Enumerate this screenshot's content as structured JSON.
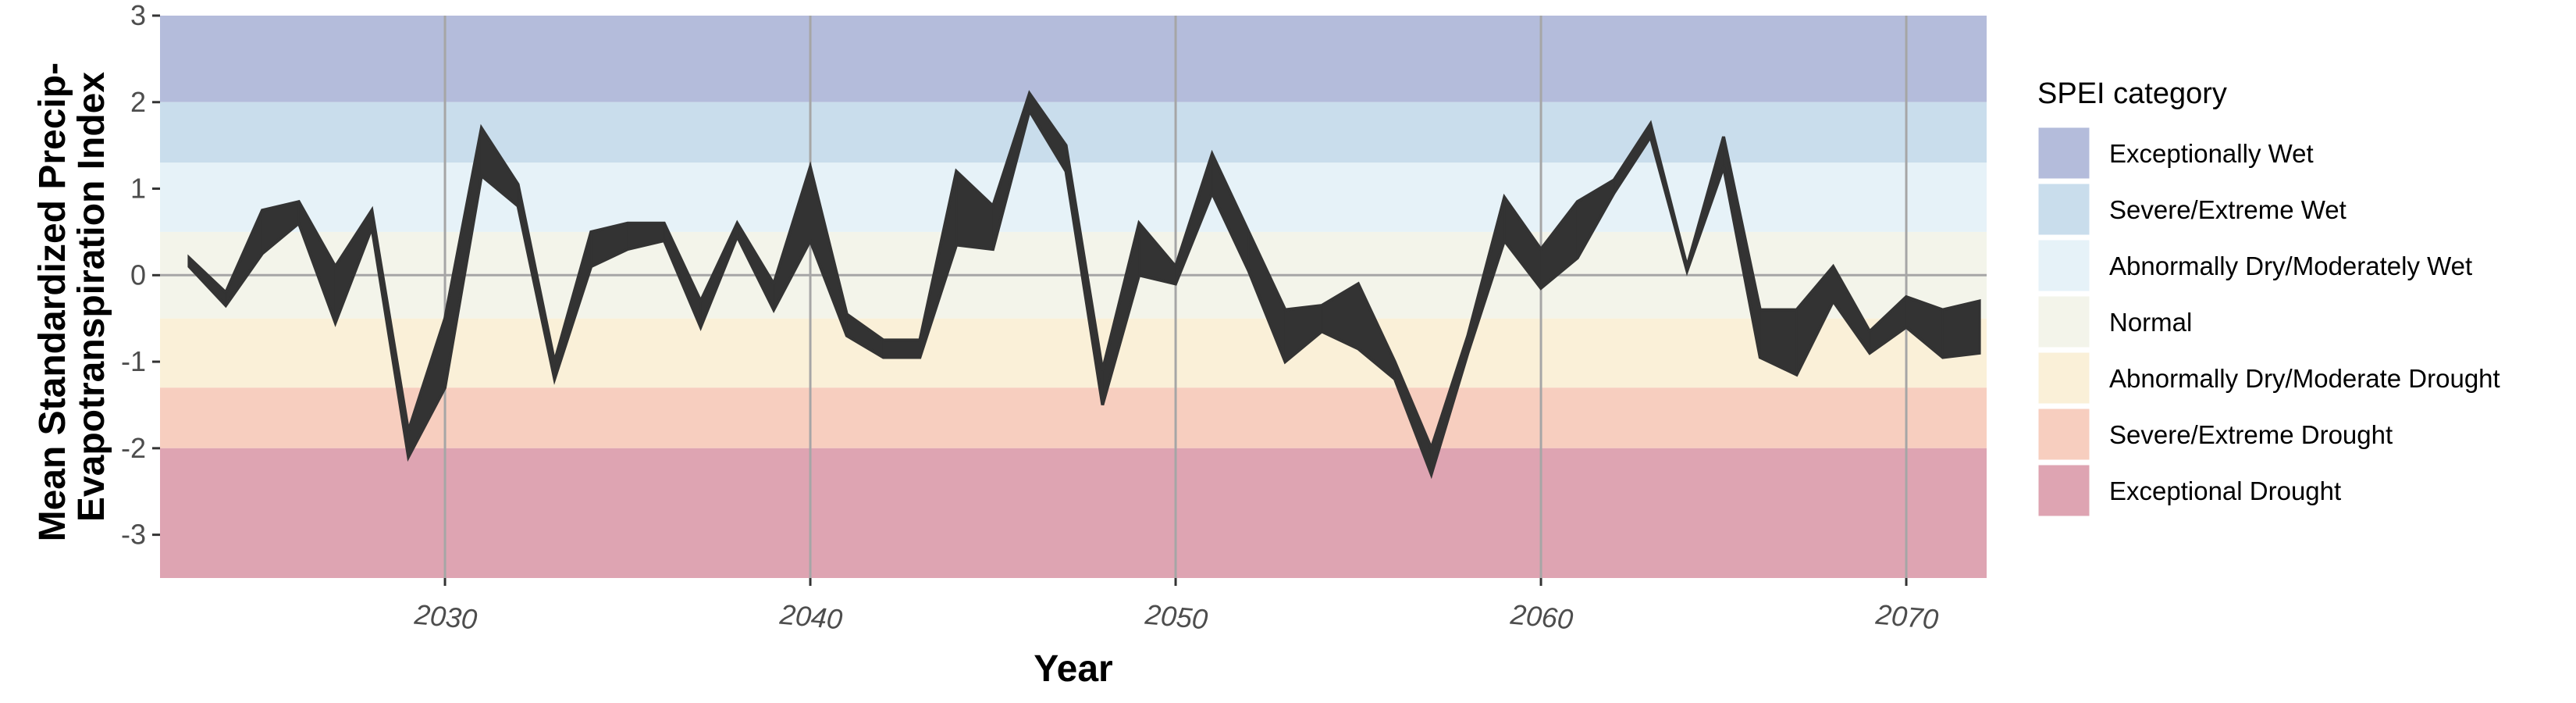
{
  "chart_data": {
    "type": "area",
    "title": "",
    "xlabel": "Year",
    "ylabel_lines": [
      "Mean Standardized Precip-",
      "Evapotranspiration Index"
    ],
    "xlim": [
      2022.2,
      2072.2
    ],
    "ylim": [
      -3.5,
      3.0
    ],
    "x_ticks": [
      2030,
      2040,
      2050,
      2060,
      2070
    ],
    "x_tick_labels": [
      "2030",
      "2040",
      "2050",
      "2060",
      "2070"
    ],
    "y_ticks": [
      3,
      2,
      1,
      0,
      -1,
      -2,
      -3
    ],
    "y_tick_labels": [
      "3",
      "2",
      "1",
      "0",
      "-1",
      "-2",
      "-3"
    ],
    "band_fill_color": "#333333",
    "zero_line": true,
    "categories": [
      {
        "label": "Exceptionally Wet",
        "from": 2.0,
        "to": 3.0,
        "color": "#B4BCDB"
      },
      {
        "label": "Severe/Extreme Wet",
        "from": 1.3,
        "to": 2.0,
        "color": "#C9DDEC"
      },
      {
        "label": "Abnormally Dry/Moderately Wet",
        "from": 0.5,
        "to": 1.3,
        "color": "#E6F2F8"
      },
      {
        "label": "Normal",
        "from": -0.5,
        "to": 0.5,
        "color": "#F3F4EA"
      },
      {
        "label": "Abnormally Dry/Moderate Drought",
        "from": -1.3,
        "to": -0.5,
        "color": "#FAF0D8"
      },
      {
        "label": "Severe/Extreme Drought",
        "from": -2.0,
        "to": -1.3,
        "color": "#F7CEBF"
      },
      {
        "label": "Exceptional Drought",
        "from": -3.5,
        "to": -2.0,
        "color": "#DEA4B2"
      }
    ],
    "legend": {
      "title": "SPEI category",
      "position": "right"
    },
    "series": [
      {
        "x": [
          2023,
          2024,
          2025,
          2026,
          2027,
          2028,
          2029,
          2030,
          2031,
          2032,
          2033,
          2034,
          2035,
          2036,
          2037,
          2038,
          2039,
          2040,
          2041,
          2042,
          2043,
          2044,
          2045,
          2046,
          2047,
          2048,
          2049,
          2050,
          2051,
          2052,
          2053,
          2054,
          2055,
          2056,
          2057,
          2058,
          2059,
          2060,
          2061,
          2062,
          2063,
          2064,
          2065,
          2066,
          2067,
          2068,
          2069,
          2070,
          2071,
          2072
        ],
        "upper": [
          0.2,
          -0.2,
          0.75,
          0.85,
          0.1,
          0.75,
          -1.8,
          -0.5,
          1.7,
          1.05,
          -1.0,
          0.5,
          0.6,
          0.6,
          -0.3,
          0.6,
          -0.1,
          1.25,
          -0.45,
          -0.75,
          -0.75,
          1.2,
          0.8,
          2.1,
          1.5,
          -1.1,
          0.6,
          0.1,
          1.4,
          0.5,
          -0.4,
          -0.35,
          -0.1,
          -1.0,
          -2.0,
          -0.7,
          0.9,
          0.3,
          0.85,
          1.1,
          1.75,
          0.1,
          1.6,
          -0.4,
          -0.4,
          0.1,
          -0.65,
          -0.25,
          -0.4,
          -0.3
        ],
        "lower": [
          0.1,
          -0.35,
          0.25,
          0.6,
          -0.55,
          0.55,
          -2.1,
          -1.3,
          1.15,
          0.8,
          -1.2,
          0.1,
          0.3,
          0.4,
          -0.6,
          0.45,
          -0.4,
          0.4,
          -0.7,
          -0.95,
          -0.95,
          0.35,
          0.3,
          1.9,
          1.2,
          -1.5,
          0.0,
          -0.1,
          0.95,
          0.05,
          -1.0,
          -0.65,
          -0.85,
          -1.2,
          -2.3,
          -0.9,
          0.4,
          -0.15,
          0.2,
          0.95,
          1.6,
          0.05,
          1.25,
          -0.95,
          -1.15,
          -0.3,
          -0.9,
          -0.6,
          -0.95,
          -0.9
        ]
      }
    ]
  }
}
